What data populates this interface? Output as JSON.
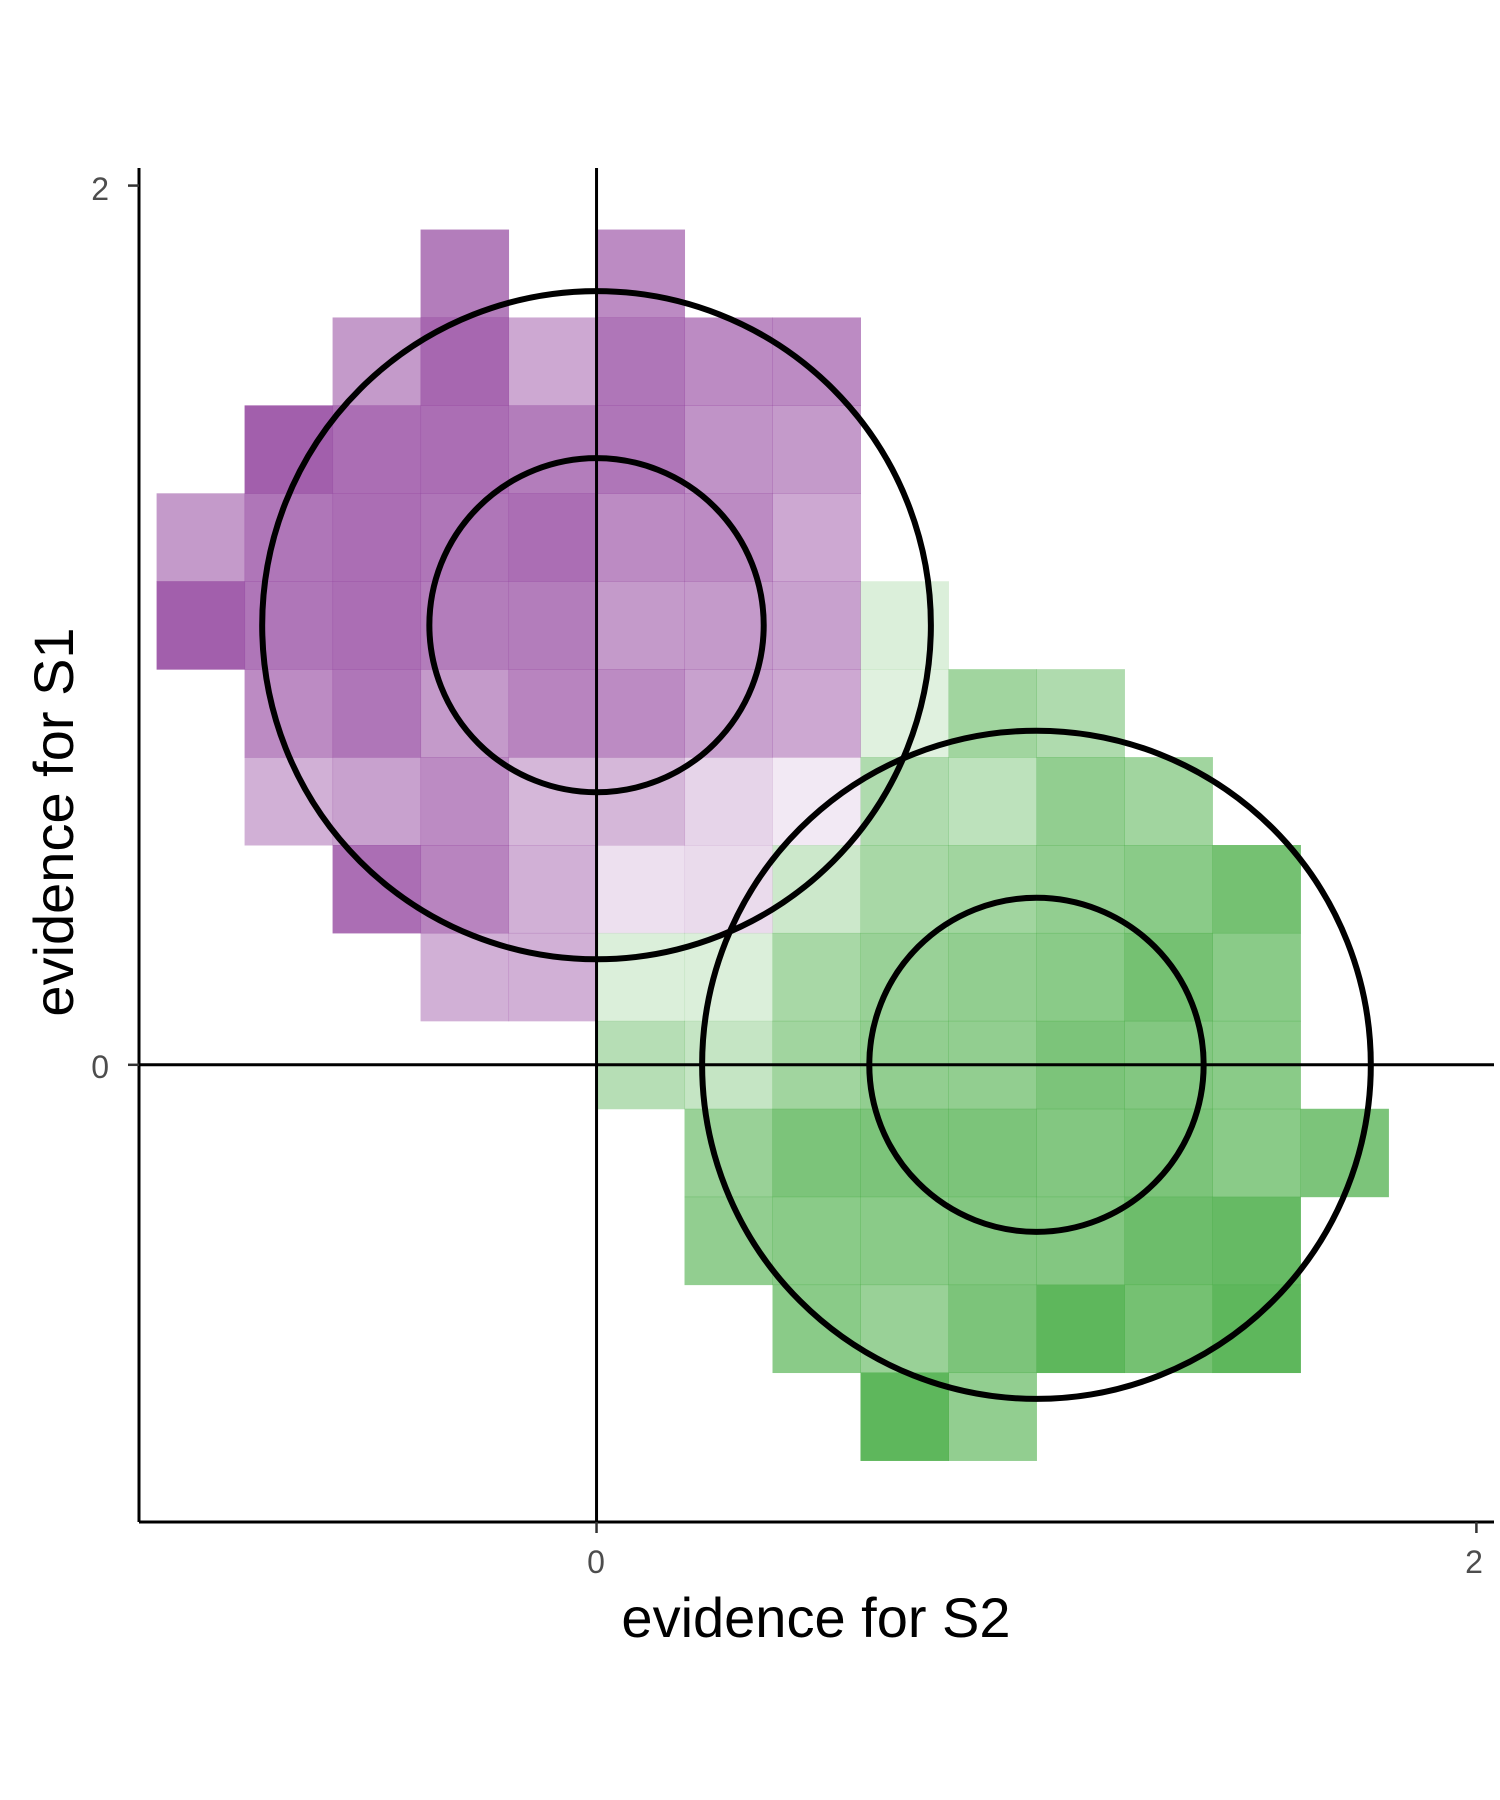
{
  "chart_data": {
    "type": "heatmap",
    "xlabel": "evidence for S2",
    "ylabel": "evidence for S1",
    "x_ticks": [
      "0",
      "2"
    ],
    "y_ticks": [
      "0",
      "2"
    ],
    "xlim": [
      -1.04,
      2.04
    ],
    "ylim": [
      -1.04,
      2.04
    ],
    "bin_size": 0.2,
    "reference_lines": {
      "x": 0,
      "y": 0
    },
    "grid": false,
    "legend": "none",
    "series": [
      {
        "color": "#984ea3",
        "center": [
          0,
          1
        ],
        "circle_radii": [
          0.38,
          0.76
        ],
        "cells": [
          [
            -0.3,
            1.8,
            0.8
          ],
          [
            0.1,
            1.8,
            0.7
          ],
          [
            -0.5,
            1.6,
            0.6
          ],
          [
            -0.3,
            1.6,
            0.95
          ],
          [
            -0.1,
            1.6,
            0.5
          ],
          [
            0.1,
            1.6,
            0.85
          ],
          [
            0.3,
            1.6,
            0.7
          ],
          [
            0.5,
            1.6,
            0.7
          ],
          [
            -0.7,
            1.4,
            1.0
          ],
          [
            -0.5,
            1.4,
            0.9
          ],
          [
            -0.3,
            1.4,
            0.9
          ],
          [
            -0.1,
            1.4,
            0.8
          ],
          [
            0.1,
            1.4,
            0.85
          ],
          [
            0.3,
            1.4,
            0.65
          ],
          [
            0.5,
            1.4,
            0.6
          ],
          [
            -0.9,
            1.2,
            0.6
          ],
          [
            -0.7,
            1.2,
            0.85
          ],
          [
            -0.5,
            1.2,
            0.9
          ],
          [
            -0.3,
            1.2,
            0.85
          ],
          [
            -0.1,
            1.2,
            0.9
          ],
          [
            0.1,
            1.2,
            0.7
          ],
          [
            0.3,
            1.2,
            0.7
          ],
          [
            0.5,
            1.2,
            0.5
          ],
          [
            -0.9,
            1.0,
            1.0
          ],
          [
            -0.7,
            1.0,
            0.85
          ],
          [
            -0.5,
            1.0,
            0.9
          ],
          [
            -0.3,
            1.0,
            0.8
          ],
          [
            -0.1,
            1.0,
            0.8
          ],
          [
            0.1,
            1.0,
            0.6
          ],
          [
            0.3,
            1.0,
            0.6
          ],
          [
            0.5,
            1.0,
            0.55
          ],
          [
            -0.7,
            0.8,
            0.7
          ],
          [
            -0.5,
            0.8,
            0.85
          ],
          [
            -0.3,
            0.8,
            0.6
          ],
          [
            -0.1,
            0.8,
            0.75
          ],
          [
            0.1,
            0.8,
            0.7
          ],
          [
            0.3,
            0.8,
            0.55
          ],
          [
            0.5,
            0.8,
            0.5
          ],
          [
            -0.7,
            0.6,
            0.45
          ],
          [
            -0.5,
            0.6,
            0.55
          ],
          [
            -0.3,
            0.6,
            0.7
          ],
          [
            -0.1,
            0.6,
            0.4
          ],
          [
            0.1,
            0.6,
            0.4
          ],
          [
            0.3,
            0.6,
            0.2
          ],
          [
            0.5,
            0.6,
            0.05
          ],
          [
            -0.5,
            0.4,
            0.9
          ],
          [
            -0.3,
            0.4,
            0.75
          ],
          [
            -0.1,
            0.4,
            0.45
          ],
          [
            0.1,
            0.4,
            0.12
          ],
          [
            0.3,
            0.4,
            0.15
          ],
          [
            -0.3,
            0.2,
            0.45
          ],
          [
            -0.1,
            0.2,
            0.45
          ]
        ]
      },
      {
        "color": "#4daf4a",
        "center": [
          1,
          0
        ],
        "circle_radii": [
          0.38,
          0.76
        ],
        "cells": [
          [
            0.7,
            1.0,
            0.15
          ],
          [
            0.7,
            0.8,
            0.12
          ],
          [
            0.9,
            0.8,
            0.55
          ],
          [
            1.1,
            0.8,
            0.45
          ],
          [
            0.7,
            0.6,
            0.45
          ],
          [
            0.9,
            0.6,
            0.35
          ],
          [
            1.1,
            0.6,
            0.65
          ],
          [
            1.3,
            0.6,
            0.55
          ],
          [
            0.5,
            0.4,
            0.25
          ],
          [
            0.7,
            0.4,
            0.5
          ],
          [
            0.9,
            0.4,
            0.55
          ],
          [
            1.1,
            0.4,
            0.65
          ],
          [
            1.3,
            0.4,
            0.7
          ],
          [
            1.5,
            0.4,
            0.85
          ],
          [
            0.1,
            0.2,
            0.15
          ],
          [
            0.3,
            0.2,
            0.15
          ],
          [
            0.5,
            0.2,
            0.5
          ],
          [
            0.7,
            0.2,
            0.6
          ],
          [
            0.9,
            0.2,
            0.65
          ],
          [
            1.1,
            0.2,
            0.7
          ],
          [
            1.3,
            0.2,
            0.85
          ],
          [
            1.5,
            0.2,
            0.7
          ],
          [
            0.1,
            0.0,
            0.4
          ],
          [
            0.3,
            0.0,
            0.3
          ],
          [
            0.5,
            0.0,
            0.55
          ],
          [
            0.7,
            0.0,
            0.65
          ],
          [
            0.9,
            0.0,
            0.65
          ],
          [
            1.1,
            0.0,
            0.8
          ],
          [
            1.3,
            0.0,
            0.75
          ],
          [
            1.5,
            0.0,
            0.7
          ],
          [
            0.3,
            -0.2,
            0.6
          ],
          [
            0.5,
            -0.2,
            0.8
          ],
          [
            0.7,
            -0.2,
            0.8
          ],
          [
            0.9,
            -0.2,
            0.8
          ],
          [
            1.1,
            -0.2,
            0.75
          ],
          [
            1.3,
            -0.2,
            0.8
          ],
          [
            1.5,
            -0.2,
            0.7
          ],
          [
            1.7,
            -0.2,
            0.8
          ],
          [
            0.3,
            -0.4,
            0.65
          ],
          [
            0.5,
            -0.4,
            0.7
          ],
          [
            0.7,
            -0.4,
            0.7
          ],
          [
            0.9,
            -0.4,
            0.75
          ],
          [
            1.1,
            -0.4,
            0.75
          ],
          [
            1.3,
            -0.4,
            0.9
          ],
          [
            1.5,
            -0.4,
            0.95
          ],
          [
            0.5,
            -0.6,
            0.7
          ],
          [
            0.7,
            -0.6,
            0.6
          ],
          [
            0.9,
            -0.6,
            0.8
          ],
          [
            1.1,
            -0.6,
            1.0
          ],
          [
            1.3,
            -0.6,
            0.85
          ],
          [
            1.5,
            -0.6,
            1.0
          ],
          [
            0.7,
            -0.8,
            1.0
          ],
          [
            0.9,
            -0.8,
            0.65
          ]
        ]
      }
    ]
  }
}
